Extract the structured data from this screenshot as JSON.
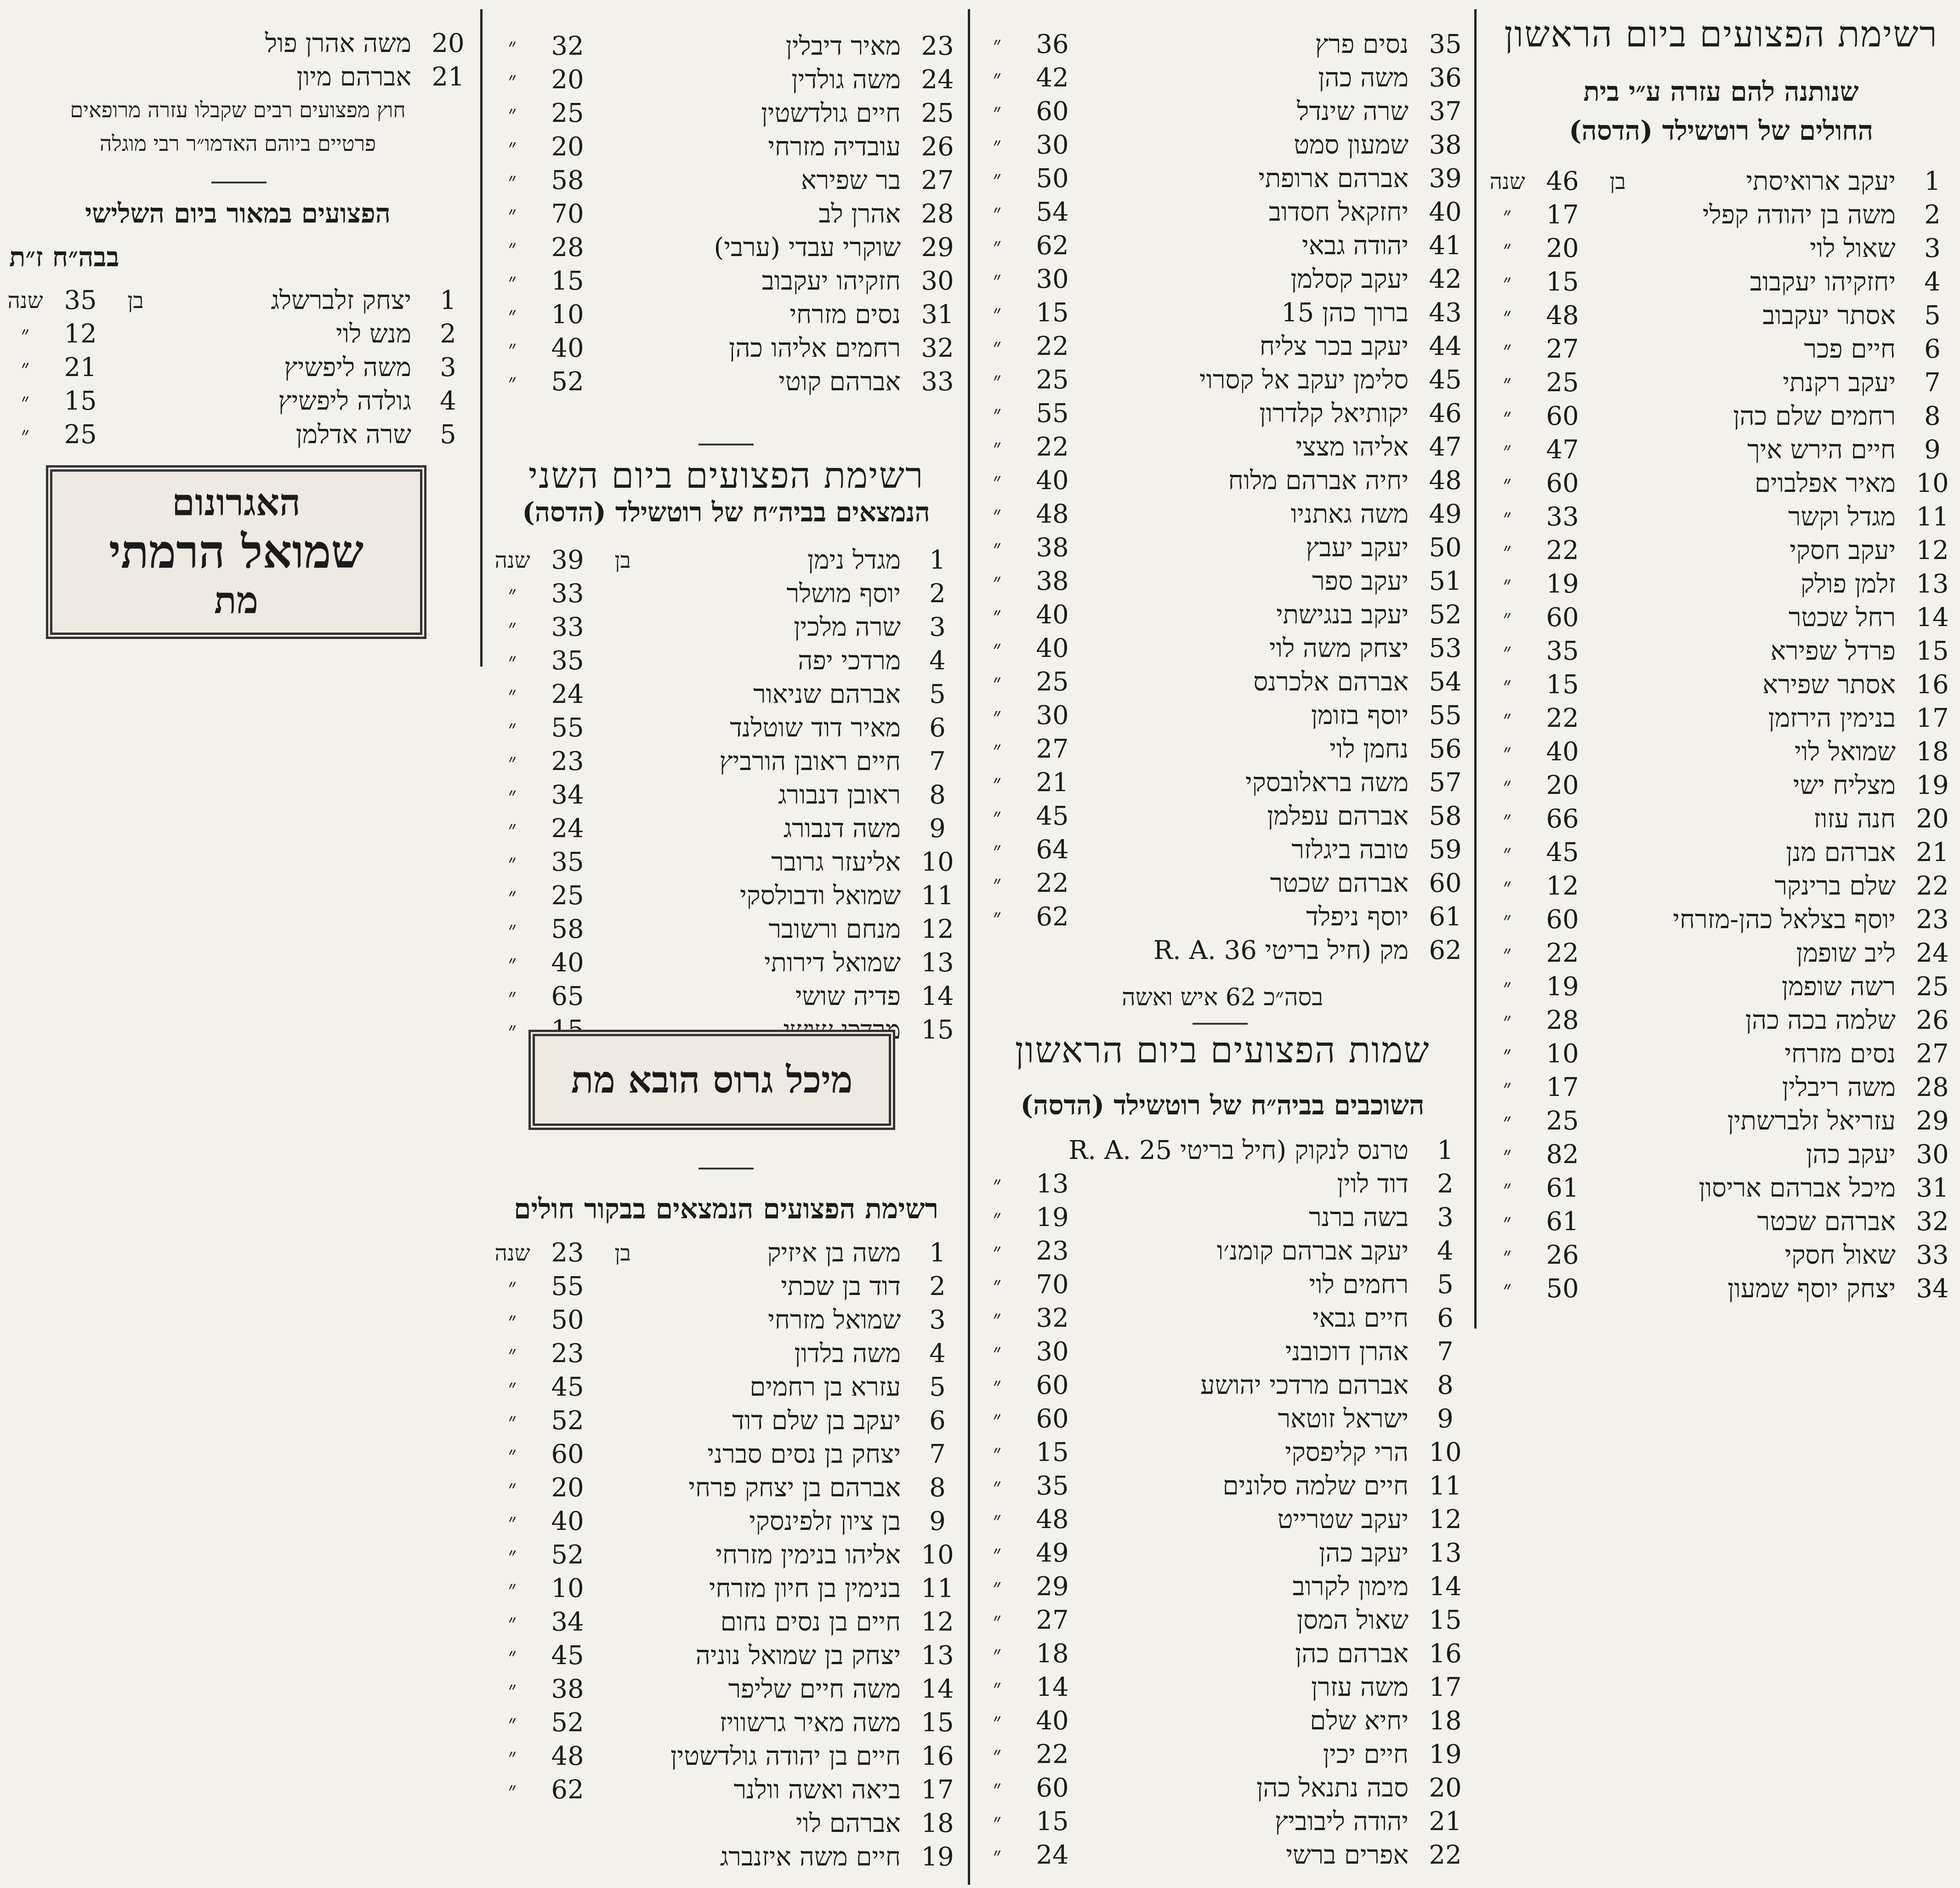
{
  "col1": {
    "title": "רשימת הפצועים ביום הראשון",
    "subtitle_1": "שנותנה להם עזרה ע״י בית",
    "subtitle_2": "החולים של רוטשילד (הדסה)",
    "ben": "בן",
    "shana": "שנה",
    "rows": [
      [
        "1",
        "יעקב ארואיסתי",
        "46"
      ],
      [
        "2",
        "משה בן יהודה קפלי",
        "17"
      ],
      [
        "3",
        "שאול לוי",
        "20"
      ],
      [
        "4",
        "יחזקיהו יעקבוב",
        "15"
      ],
      [
        "5",
        "אסתר יעקבוב",
        "48"
      ],
      [
        "6",
        "חיים פכר",
        "27"
      ],
      [
        "7",
        "יעקב רקנתי",
        "25"
      ],
      [
        "8",
        "רחמים שלם כהן",
        "60"
      ],
      [
        "9",
        "חיים הירש איך",
        "47"
      ],
      [
        "10",
        "מאיר אפלבוים",
        "60"
      ],
      [
        "11",
        "מגדל וקשר",
        "33"
      ],
      [
        "12",
        "יעקב חסקי",
        "22"
      ],
      [
        "13",
        "זלמן פולק",
        "19"
      ],
      [
        "14",
        "רחל שכטר",
        "60"
      ],
      [
        "15",
        "פרדל שפירא",
        "35"
      ],
      [
        "16",
        "אסתר שפירא",
        "15"
      ],
      [
        "17",
        "בנימין הירזמן",
        "22"
      ],
      [
        "18",
        "שמואל לוי",
        "40"
      ],
      [
        "19",
        "מצליח ישי",
        "20"
      ],
      [
        "20",
        "חנה עזוז",
        "66"
      ],
      [
        "21",
        "אברהם מנן",
        "45"
      ],
      [
        "22",
        "שלם ברינקר",
        "12"
      ],
      [
        "23",
        "יוסף בצלאל כהן-מזרחי",
        "60"
      ],
      [
        "24",
        "ליב שופמן",
        "22"
      ],
      [
        "25",
        "רשה שופמן",
        "19"
      ],
      [
        "26",
        "שלמה בכה כהן",
        "28"
      ],
      [
        "27",
        "נסים מזרחי",
        "10"
      ],
      [
        "28",
        "משה ריבלין",
        "17"
      ],
      [
        "29",
        "עזריאל זלברשתין",
        "25"
      ],
      [
        "30",
        "יעקב כהן",
        "82"
      ],
      [
        "31",
        "מיכל אברהם אריסון",
        "61"
      ],
      [
        "32",
        "אברהם שכטר",
        "61"
      ],
      [
        "33",
        "שאול חסקי",
        "26"
      ],
      [
        "34",
        "יצחק יוסף שמעון",
        "50"
      ]
    ]
  },
  "col2": {
    "rows_a": [
      [
        "35",
        "נסים פרץ",
        "36"
      ],
      [
        "36",
        "משה כהן",
        "42"
      ],
      [
        "37",
        "שרה שינדל",
        "60"
      ],
      [
        "38",
        "שמעון סמט",
        "30"
      ],
      [
        "39",
        "אברהם ארופתי",
        "50"
      ],
      [
        "40",
        "יחזקאל חסדוב",
        "54"
      ],
      [
        "41",
        "יהודה גבאי",
        "62"
      ],
      [
        "42",
        "יעקב קסלמן",
        "30"
      ],
      [
        "43",
        "ברוך כהן 15",
        "15"
      ],
      [
        "44",
        "יעקב בכר צליח",
        "22"
      ],
      [
        "45",
        "סלימן יעקב אל קסרוי",
        "25"
      ],
      [
        "46",
        "יקותיאל קלדרון",
        "55"
      ],
      [
        "47",
        "אליהו מצצי",
        "22"
      ],
      [
        "48",
        "יחיה אברהם מלוח",
        "40"
      ],
      [
        "49",
        "משה גאתניו",
        "48"
      ],
      [
        "50",
        "יעקב יעבץ",
        "38"
      ],
      [
        "51",
        "יעקב ספר",
        "38"
      ],
      [
        "52",
        "יעקב בנגישתי",
        "40"
      ],
      [
        "53",
        "יצחק משה לוי",
        "40"
      ],
      [
        "54",
        "אברהם אלכרנס",
        "25"
      ],
      [
        "55",
        "יוסף בזומן",
        "30"
      ],
      [
        "56",
        "נחמן לוי",
        "27"
      ],
      [
        "57",
        "משה בראלובסקי",
        "21"
      ],
      [
        "58",
        "אברהם עפלמן",
        "45"
      ],
      [
        "59",
        "טובה ביגלזר",
        "64"
      ],
      [
        "60",
        "אברהם שכטר",
        "22"
      ],
      [
        "61",
        "יוסף ניפלד",
        "62"
      ],
      [
        "62",
        "מק (חיל בריטי 36 .R. A",
        ""
      ]
    ],
    "total": "בסה״כ 62 איש ואשה",
    "title": "שמות הפצועים ביום הראשון",
    "subtitle": "השוכבים בביה״ח של רוטשילד (הדסה)",
    "ben": "בן",
    "shana": "שנה",
    "rows_b": [
      [
        "1",
        "טרנס לנקוק (חיל בריטי 25 .R. A",
        ""
      ],
      [
        "2",
        "דוד לוין",
        "13"
      ],
      [
        "3",
        "בשה ברנר",
        "19"
      ],
      [
        "4",
        "יעקב אברהם קומנ׳ו",
        "23"
      ],
      [
        "5",
        "רחמים לוי",
        "70"
      ],
      [
        "6",
        "חיים גבאי",
        "32"
      ],
      [
        "7",
        "אהרן דוכובני",
        "30"
      ],
      [
        "8",
        "אברהם מרדכי יהושע",
        "60"
      ],
      [
        "9",
        "ישראל זוטאר",
        "60"
      ],
      [
        "10",
        "הרי קליפסקי",
        "15"
      ],
      [
        "11",
        "חיים שלמה סלונים",
        "35"
      ],
      [
        "12",
        "יעקב שטרייט",
        "48"
      ],
      [
        "13",
        "יעקב כהן",
        "49"
      ],
      [
        "14",
        "מימון לקרוב",
        "29"
      ],
      [
        "15",
        "שאול המסן",
        "27"
      ],
      [
        "16",
        "אברהם כהן",
        "18"
      ],
      [
        "17",
        "משה עזרן",
        "14"
      ],
      [
        "18",
        "יחיא שלם",
        "40"
      ],
      [
        "19",
        "חיים יכין",
        "22"
      ],
      [
        "20",
        "סבה נתנאל כהן",
        "60"
      ],
      [
        "21",
        "יהודה ליבוביץ",
        "15"
      ],
      [
        "22",
        "אפרים ברשי",
        "24"
      ]
    ]
  },
  "col3": {
    "rows_a": [
      [
        "23",
        "מאיר דיבלין",
        "32"
      ],
      [
        "24",
        "משה גולדין",
        "20"
      ],
      [
        "25",
        "חיים גולדשטין",
        "25"
      ],
      [
        "26",
        "עובדיה מזרחי",
        "20"
      ],
      [
        "27",
        "בר שפירא",
        "58"
      ],
      [
        "28",
        "אהרן לב",
        "70"
      ],
      [
        "29",
        "שוקרי עבדי (ערבי)",
        "28"
      ],
      [
        "30",
        "חזקיהו יעקבוב",
        "15"
      ],
      [
        "31",
        "נסים מזרחי",
        "10"
      ],
      [
        "32",
        "רחמים אליהו כהן",
        "40"
      ],
      [
        "33",
        "אברהם קוטי",
        "52"
      ]
    ],
    "title_1": "רשימת הפצועים ביום השני",
    "subtitle_1": "הנמצאים בביה״ח של רוטשילד (הדסה)",
    "ben": "בן",
    "shana": "שנה",
    "rows_b": [
      [
        "1",
        "מגדל נימן",
        "39"
      ],
      [
        "2",
        "יוסף מושלר",
        "33"
      ],
      [
        "3",
        "שרה מלכין",
        "33"
      ],
      [
        "4",
        "מרדכי יפה",
        "35"
      ],
      [
        "5",
        "אברהם שניאור",
        "24"
      ],
      [
        "6",
        "מאיר דוד שוטלנד",
        "55"
      ],
      [
        "7",
        "חיים ראובן הורביץ",
        "23"
      ],
      [
        "8",
        "ראובן דנבורג",
        "34"
      ],
      [
        "9",
        "משה דנבורג",
        "24"
      ],
      [
        "10",
        "אליעזר גרובר",
        "35"
      ],
      [
        "11",
        "שמואל ודבולסקי",
        "25"
      ],
      [
        "12",
        "מנחם ורשובר",
        "58"
      ],
      [
        "13",
        "שמואל דירותי",
        "40"
      ],
      [
        "14",
        "פדיה שושי",
        "65"
      ],
      [
        "15",
        "מרדכי שושי",
        "15"
      ]
    ],
    "box_text": "מיכל גרוס הובא מת",
    "title_2": "רשימת הפצועים הנמצאים בבקור חולים",
    "rows_c": [
      [
        "1",
        "משה בן איזיק",
        "23"
      ],
      [
        "2",
        "דוד בן שכתי",
        "55"
      ],
      [
        "3",
        "שמואל מזרחי",
        "50"
      ],
      [
        "4",
        "משה בלדון",
        "23"
      ],
      [
        "5",
        "עזרא בן רחמים",
        "45"
      ],
      [
        "6",
        "יעקב בן שלם דוד",
        "52"
      ],
      [
        "7",
        "יצחק בן נסים סברני",
        "60"
      ],
      [
        "8",
        "אברהם בן יצחק פרחי",
        "20"
      ],
      [
        "9",
        "בן ציון זלפינסקי",
        "40"
      ],
      [
        "10",
        "אליהו בנימין מזרחי",
        "52"
      ],
      [
        "11",
        "בנימין בן חיון מזרחי",
        "10"
      ],
      [
        "12",
        "חיים בן נסים נחום",
        "34"
      ],
      [
        "13",
        "יצחק בן שמואל נוניה",
        "45"
      ],
      [
        "14",
        "משה חיים שליפר",
        "38"
      ],
      [
        "15",
        "משה מאיר גרשוויז",
        "52"
      ],
      [
        "16",
        "חיים בן יהודה גולדשטין",
        "48"
      ],
      [
        "17",
        "ביאה ואשה וולנר",
        "62"
      ],
      [
        "18",
        "אברהם לוי",
        ""
      ],
      [
        "19",
        "חיים משה איזנברג",
        ""
      ]
    ]
  },
  "col4": {
    "rows_a": [
      [
        "20",
        "משה אהרן פול",
        ""
      ],
      [
        "21",
        "אברהם מיון",
        ""
      ]
    ],
    "note_1": "חוץ מפצועים רבים שקבלו עזרה מרופאים",
    "note_2": "פרטיים ביוהם האדמו״ר רבי מוגלה",
    "title": "הפצועים במאור ביום השלישי",
    "subtitle": "בבה״ח ז״ת",
    "ben": "בן",
    "shana": "שנה",
    "rows_b": [
      [
        "1",
        "יצחק זלברשלג",
        "35"
      ],
      [
        "2",
        "מנש לוי",
        "12"
      ],
      [
        "3",
        "משה ליפשיץ",
        "21"
      ],
      [
        "4",
        "גולדה ליפשיץ",
        "15"
      ],
      [
        "5",
        "שרה אדלמן",
        "25"
      ]
    ],
    "box_line_1": "האגרונום",
    "box_line_2": "שמואל הרמתי",
    "box_line_3": "מת"
  },
  "ditto": "״"
}
